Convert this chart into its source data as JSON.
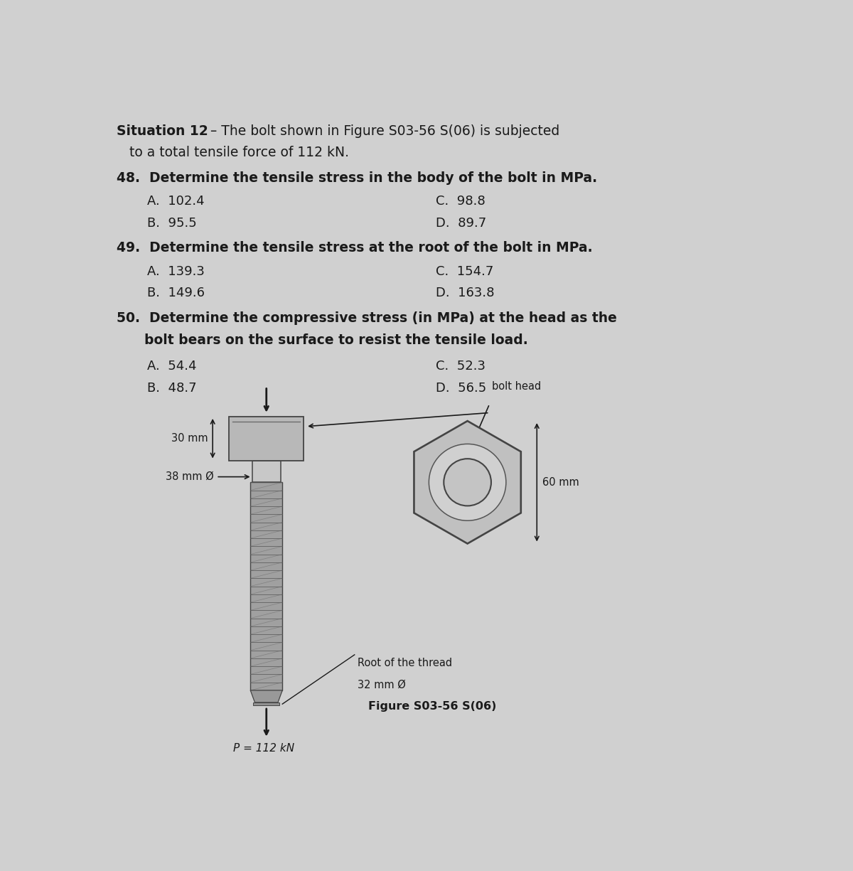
{
  "bg_color": "#d0d0d0",
  "title_bold": "Situation 12",
  "title_rest1": " – The bolt shown in Figure S03-56 S(06) is subjected",
  "title_rest2": "   to a total tensile force of 112 kN.",
  "q48": "48.  Determine the tensile stress in the body of the bolt in MPa.",
  "q48_A": "A.  102.4",
  "q48_B": "B.  95.5",
  "q48_C": "C.  98.8",
  "q48_D": "D.  89.7",
  "q49": "49.  Determine the tensile stress at the root of the bolt in MPa.",
  "q49_A": "A.  139.3",
  "q49_B": "B.  149.6",
  "q49_C": "C.  154.7",
  "q49_D": "D.  163.8",
  "q50_line1": "50.  Determine the compressive stress (in MPa) at the head as the",
  "q50_line2": "      bolt bears on the surface to resist the tensile load.",
  "q50_A": "A.  54.4",
  "q50_B": "B.  48.7",
  "q50_C": "C.  52.3",
  "q50_D": "D.  56.5",
  "fig_caption": "Figure S03-56 S(06)",
  "label_30mm": "30 mm",
  "label_38mm": "38 mm Ø",
  "label_bolt_head": "bolt head",
  "label_60mm": "60 mm",
  "label_root1": "Root of the thread",
  "label_root2": "32 mm Ø",
  "label_P": "P = 112 kN",
  "text_color": "#1a1a1a",
  "bolt_head_color": "#b8b8b8",
  "bolt_body_color": "#c8c8c8",
  "bolt_thread_color": "#a0a0a0",
  "hex_color": "#c0c0c0",
  "hex_edge_color": "#444444"
}
